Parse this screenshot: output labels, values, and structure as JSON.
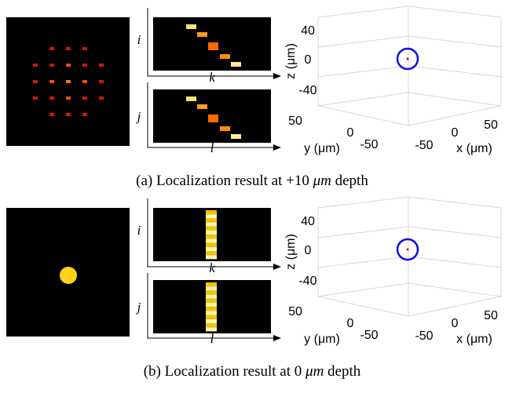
{
  "panels": [
    {
      "caption": {
        "label": "(a) Localization result at +10",
        "unit": "μm",
        "suffix": "depth"
      },
      "axes": {
        "top_row": "i",
        "top_col": "k",
        "bottom_row": "j",
        "bottom_col": "l"
      },
      "plot3d": {
        "z_label": "z (μm)",
        "z_ticks": [
          "40",
          "0",
          "-40"
        ],
        "y_label": "y (μm)",
        "y_ticks": [
          "50",
          "0",
          "-50"
        ],
        "x_label": "x (μm)",
        "x_ticks": [
          "-50",
          "0",
          "50"
        ]
      }
    },
    {
      "caption": {
        "label": "(b) Localization result at 0",
        "unit": "μm",
        "suffix": "depth"
      },
      "axes": {
        "top_row": "i",
        "top_col": "k",
        "bottom_row": "j",
        "bottom_col": "l"
      },
      "plot3d": {
        "z_label": "z (μm)",
        "z_ticks": [
          "40",
          "0",
          "-40"
        ],
        "y_label": "y (μm)",
        "y_ticks": [
          "50",
          "0",
          "-50"
        ],
        "x_label": "x (μm)",
        "x_ticks": [
          "-50",
          "0",
          "50"
        ]
      }
    }
  ]
}
